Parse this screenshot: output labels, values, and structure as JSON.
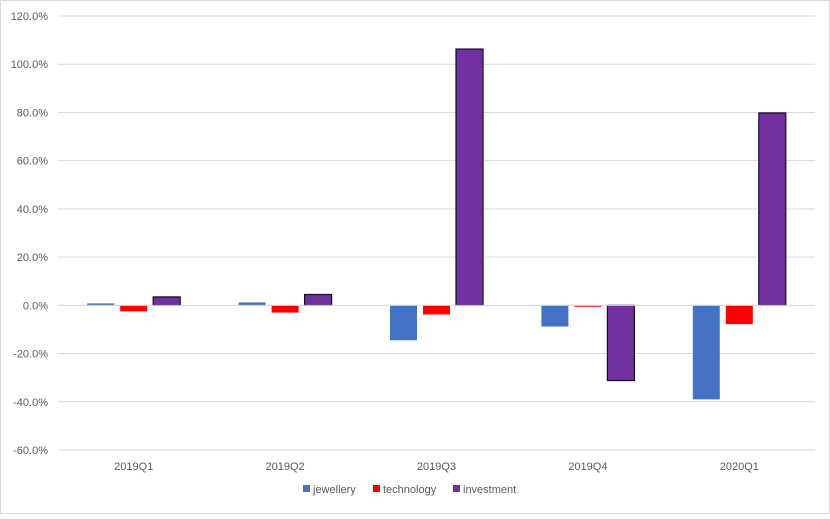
{
  "chart_data": {
    "type": "bar",
    "categories": [
      "2019Q1",
      "2019Q2",
      "2019Q3",
      "2019Q4",
      "2020Q1"
    ],
    "series": [
      {
        "name": "jewellery",
        "color": "#4472C4",
        "values": [
          0.8,
          1.2,
          -14.5,
          -8.8,
          -39.0
        ]
      },
      {
        "name": "technology",
        "color": "#FF0000",
        "values": [
          -2.5,
          -3.0,
          -3.8,
          -0.6,
          -7.8
        ]
      },
      {
        "name": "investment",
        "color": "#7030A0",
        "values": [
          3.5,
          4.5,
          106.3,
          -31.2,
          79.8
        ]
      }
    ],
    "y_ticks": [
      "120.0%",
      "100.0%",
      "80.0%",
      "60.0%",
      "40.0%",
      "20.0%",
      "0.0%",
      "-20.0%",
      "-40.0%",
      "-60.0%"
    ],
    "ylim": [
      -60,
      120
    ],
    "grid": true,
    "legend_position": "bottom",
    "title": "",
    "xlabel": "",
    "ylabel": ""
  }
}
